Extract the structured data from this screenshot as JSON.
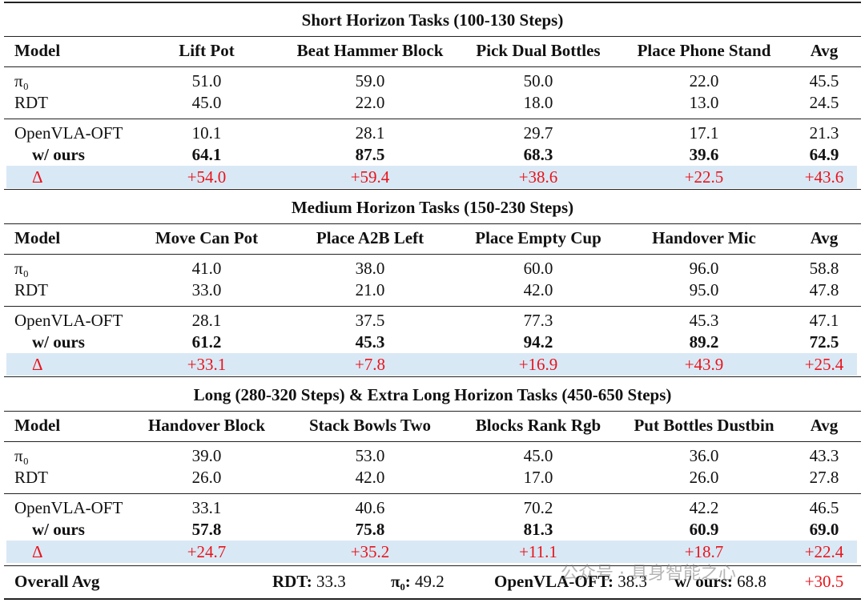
{
  "sections": [
    {
      "title": "Short Horizon Tasks (100-130 Steps)",
      "header": [
        "Model",
        "Lift Pot",
        "Beat Hammer Block",
        "Pick Dual Bottles",
        "Place Phone Stand",
        "Avg"
      ],
      "baselines": [
        [
          "π₀",
          "51.0",
          "59.0",
          "50.0",
          "22.0",
          "45.5"
        ],
        [
          "RDT",
          "45.0",
          "22.0",
          "18.0",
          "13.0",
          "24.5"
        ]
      ],
      "base": [
        "OpenVLA-OFT",
        "10.1",
        "28.1",
        "29.7",
        "17.1",
        "21.3"
      ],
      "ours": [
        "w/ ours",
        "64.1",
        "87.5",
        "68.3",
        "39.6",
        "64.9"
      ],
      "delta": [
        "Δ",
        "+54.0",
        "+59.4",
        "+38.6",
        "+22.5",
        "+43.6"
      ]
    },
    {
      "title": "Medium Horizon Tasks (150-230 Steps)",
      "header": [
        "Model",
        "Move Can Pot",
        "Place A2B Left",
        "Place Empty Cup",
        "Handover Mic",
        "Avg"
      ],
      "baselines": [
        [
          "π₀",
          "41.0",
          "38.0",
          "60.0",
          "96.0",
          "58.8"
        ],
        [
          "RDT",
          "33.0",
          "21.0",
          "42.0",
          "95.0",
          "47.8"
        ]
      ],
      "base": [
        "OpenVLA-OFT",
        "28.1",
        "37.5",
        "77.3",
        "45.3",
        "47.1"
      ],
      "ours": [
        "w/ ours",
        "61.2",
        "45.3",
        "94.2",
        "89.2",
        "72.5"
      ],
      "delta": [
        "Δ",
        "+33.1",
        "+7.8",
        "+16.9",
        "+43.9",
        "+25.4"
      ]
    },
    {
      "title": "Long (280-320 Steps) & Extra Long Horizon Tasks (450-650 Steps)",
      "header": [
        "Model",
        "Handover Block",
        "Stack Bowls Two",
        "Blocks Rank Rgb",
        "Put Bottles Dustbin",
        "Avg"
      ],
      "baselines": [
        [
          "π₀",
          "39.0",
          "53.0",
          "45.0",
          "36.0",
          "43.3"
        ],
        [
          "RDT",
          "26.0",
          "42.0",
          "17.0",
          "26.0",
          "27.8"
        ]
      ],
      "base": [
        "OpenVLA-OFT",
        "33.1",
        "40.6",
        "70.2",
        "42.2",
        "46.5"
      ],
      "ours": [
        "w/ ours",
        "57.8",
        "75.8",
        "81.3",
        "60.9",
        "69.0"
      ],
      "delta": [
        "Δ",
        "+24.7",
        "+35.2",
        "+11.1",
        "+18.7",
        "+22.4"
      ]
    }
  ],
  "footer": {
    "label": "Overall Avg",
    "items": [
      {
        "label": "RDT:",
        "value": "33.3"
      },
      {
        "label": "π₀:",
        "value": "49.2"
      },
      {
        "label": "OpenVLA-OFT:",
        "value": "38.3"
      },
      {
        "label": "w/ ours:",
        "value": "68.8"
      }
    ],
    "delta": "+30.5"
  },
  "watermark": "公众号 · 具身智能之心"
}
